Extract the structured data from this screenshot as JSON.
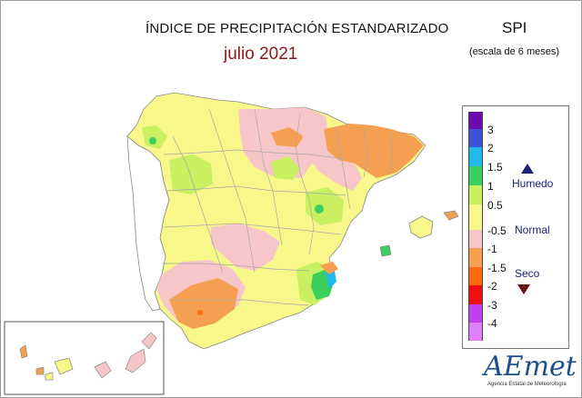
{
  "header": {
    "title": "ÍNDICE DE PRECIPITACIÓN ESTANDARIZADO",
    "period": "julio 2021",
    "index_label": "SPI",
    "scale_note": "(escala de 6 meses)"
  },
  "legend": {
    "ticks": [
      "3",
      "2",
      "1.5",
      "1",
      "0.5",
      "-0.5",
      "-1",
      "-1.5",
      "-2",
      "-3",
      "-4"
    ],
    "colors": [
      "#6a0dad",
      "#3f51d8",
      "#22b8e8",
      "#3ccf5e",
      "#c8f060",
      "#f7f78a",
      "#f7c6c8",
      "#f5a050",
      "#ff6a10",
      "#ee1010",
      "#c040f0",
      "#e080f8"
    ],
    "categories": {
      "wet": "Humedo",
      "normal": "Normal",
      "dry": "Seco"
    }
  },
  "logo": {
    "name": "AEmet",
    "subtitle": "Agencia Estatal de Meteorología"
  }
}
